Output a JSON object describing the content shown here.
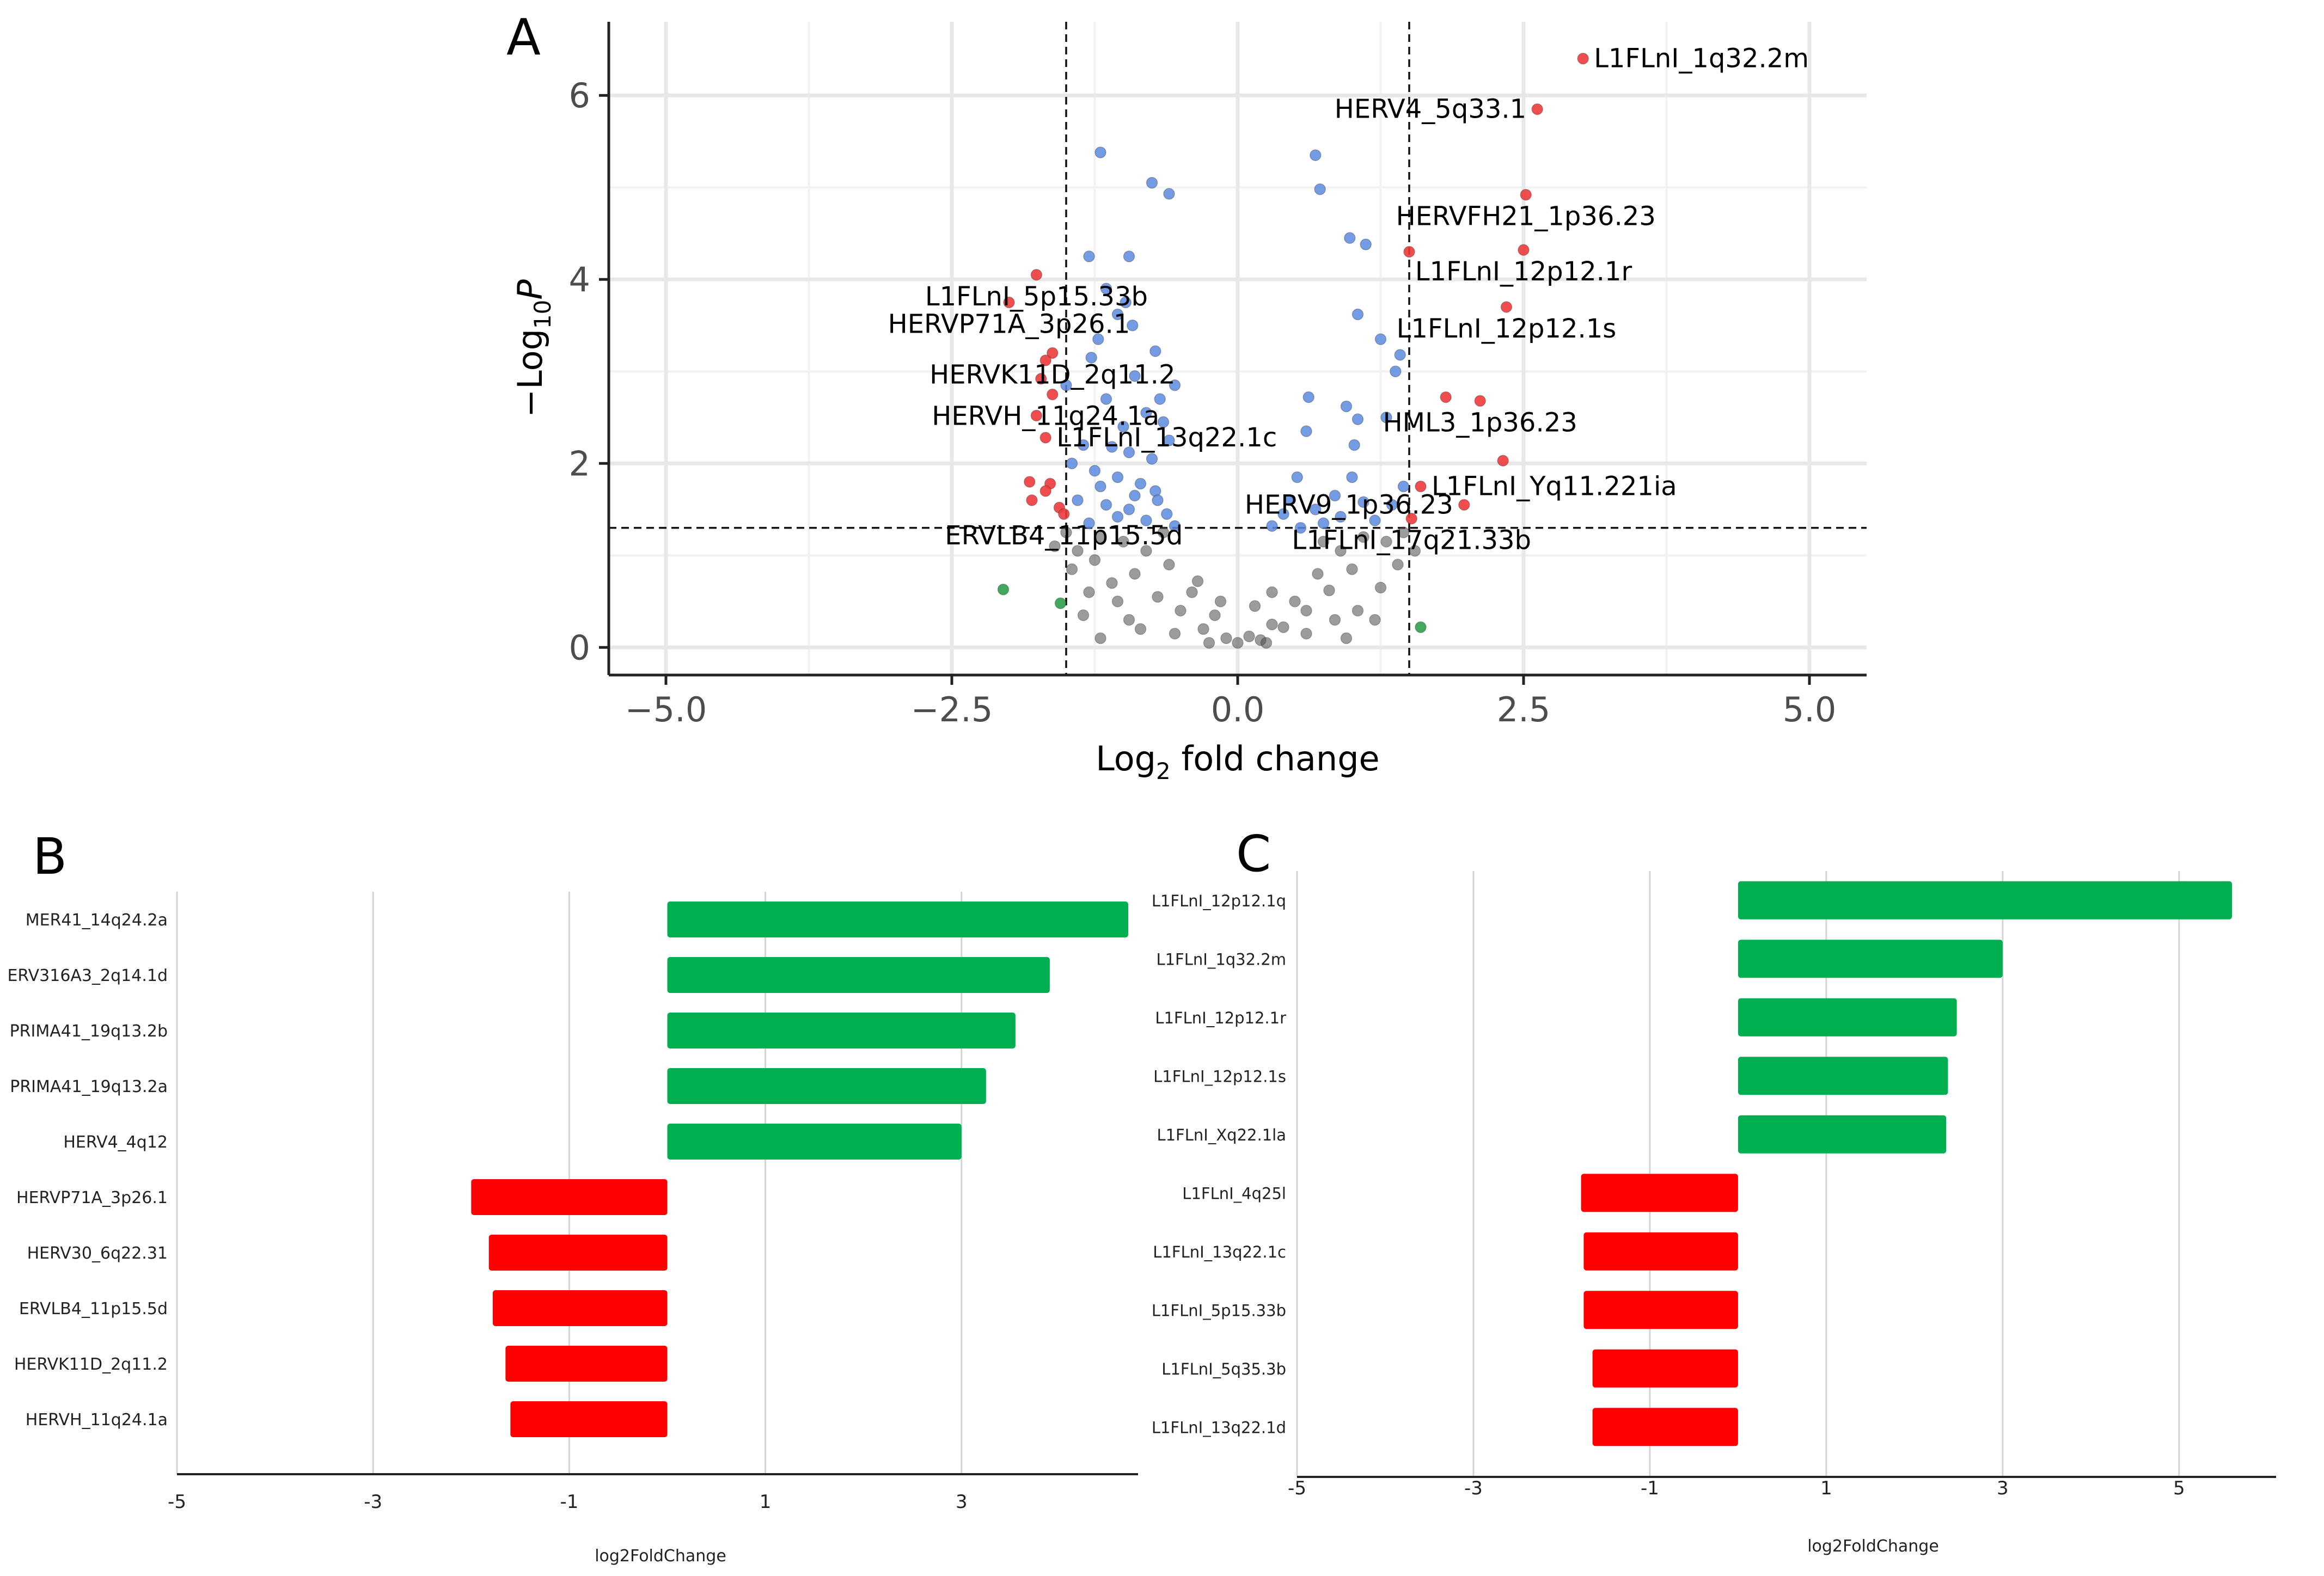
{
  "figure": {
    "panel_labels": [
      "A",
      "B",
      "C"
    ]
  },
  "colors": {
    "ns_point": "#4a4a4a",
    "p_point": "#5b8bdf",
    "fc_p_point": "#ee3b3b",
    "fc_point": "#2e9e4a",
    "up_bar": "#00b050",
    "down_bar": "#ff0000",
    "grid": "#e8e8e8",
    "bar_grid": "#d4d4d4"
  },
  "chart_data": [
    {
      "id": "A",
      "type": "scatter",
      "subtype": "volcano",
      "xlabel_base": "Log",
      "xlabel_sub": "2",
      "xlabel_rest": " fold change",
      "ylabel_prefix": "−Log",
      "ylabel_sub": "10",
      "ylabel_var": "P",
      "xlim": [
        -5.5,
        5.5
      ],
      "ylim": [
        -0.3,
        6.8
      ],
      "xticks": [
        -5,
        -2.5,
        0,
        2.5,
        5
      ],
      "xtick_labels": [
        "−5.0",
        "−2.5",
        "0.0",
        "2.5",
        "5.0"
      ],
      "yticks": [
        0,
        2,
        4,
        6
      ],
      "ytick_labels": [
        "0",
        "2",
        "4",
        "6"
      ],
      "thresholds": {
        "fc": [
          -1.5,
          1.5
        ],
        "p": 1.3
      },
      "red_points": [
        [
          3.02,
          6.4
        ],
        [
          2.62,
          5.85
        ],
        [
          2.52,
          4.92
        ],
        [
          2.5,
          4.32
        ],
        [
          1.5,
          4.3
        ],
        [
          2.35,
          3.7
        ],
        [
          1.82,
          2.72
        ],
        [
          2.12,
          2.68
        ],
        [
          2.32,
          2.03
        ],
        [
          1.6,
          1.75
        ],
        [
          1.98,
          1.55
        ],
        [
          1.52,
          1.4
        ],
        [
          -1.76,
          4.05
        ],
        [
          -2.0,
          3.75
        ],
        [
          -1.62,
          3.2
        ],
        [
          -1.68,
          3.12
        ],
        [
          -1.72,
          2.92
        ],
        [
          -1.62,
          2.75
        ],
        [
          -1.76,
          2.52
        ],
        [
          -1.68,
          2.28
        ],
        [
          -1.82,
          1.8
        ],
        [
          -1.64,
          1.78
        ],
        [
          -1.68,
          1.7
        ],
        [
          -1.8,
          1.6
        ],
        [
          -1.56,
          1.52
        ],
        [
          -1.52,
          1.45
        ]
      ],
      "blue_points": [
        [
          -1.2,
          5.38
        ],
        [
          -0.75,
          5.05
        ],
        [
          -0.6,
          4.93
        ],
        [
          -0.95,
          4.25
        ],
        [
          -1.3,
          4.25
        ],
        [
          -1.15,
          3.9
        ],
        [
          -0.98,
          3.75
        ],
        [
          -1.05,
          3.62
        ],
        [
          -0.92,
          3.5
        ],
        [
          -1.22,
          3.35
        ],
        [
          -1.28,
          3.15
        ],
        [
          -0.72,
          3.22
        ],
        [
          -0.9,
          2.95
        ],
        [
          -1.5,
          2.85
        ],
        [
          -0.55,
          2.85
        ],
        [
          -1.15,
          2.7
        ],
        [
          -0.8,
          2.55
        ],
        [
          -0.65,
          2.45
        ],
        [
          -1.35,
          2.2
        ],
        [
          -1.1,
          2.18
        ],
        [
          -0.95,
          2.12
        ],
        [
          -0.75,
          2.05
        ],
        [
          -0.6,
          2.25
        ],
        [
          -1.25,
          1.92
        ],
        [
          -1.05,
          1.85
        ],
        [
          -0.85,
          1.78
        ],
        [
          -0.72,
          1.7
        ],
        [
          -1.4,
          1.6
        ],
        [
          -1.15,
          1.55
        ],
        [
          -0.95,
          1.5
        ],
        [
          -0.62,
          1.45
        ],
        [
          -0.8,
          1.38
        ],
        [
          -1.3,
          1.35
        ],
        [
          -0.55,
          1.32
        ],
        [
          -1.05,
          1.42
        ],
        [
          -0.9,
          1.65
        ],
        [
          -1.2,
          1.75
        ],
        [
          -0.7,
          1.6
        ],
        [
          -1.45,
          2.0
        ],
        [
          -0.68,
          2.7
        ],
        [
          -1.0,
          2.4
        ],
        [
          0.68,
          5.35
        ],
        [
          0.72,
          4.98
        ],
        [
          0.98,
          4.45
        ],
        [
          1.12,
          4.38
        ],
        [
          1.05,
          3.62
        ],
        [
          1.38,
          3.0
        ],
        [
          1.42,
          3.18
        ],
        [
          1.3,
          2.5
        ],
        [
          1.05,
          2.48
        ],
        [
          0.62,
          2.72
        ],
        [
          1.02,
          2.2
        ],
        [
          0.6,
          2.35
        ],
        [
          0.85,
          1.65
        ],
        [
          0.52,
          1.85
        ],
        [
          0.68,
          1.5
        ],
        [
          0.4,
          1.45
        ],
        [
          0.9,
          1.42
        ],
        [
          1.2,
          1.38
        ],
        [
          0.3,
          1.32
        ],
        [
          1.35,
          1.55
        ],
        [
          1.0,
          1.85
        ],
        [
          0.75,
          1.35
        ],
        [
          1.45,
          1.75
        ],
        [
          0.55,
          1.3
        ],
        [
          1.1,
          1.58
        ],
        [
          0.95,
          2.62
        ],
        [
          1.25,
          3.35
        ],
        [
          0.45,
          1.6
        ]
      ],
      "green_points": [
        [
          -2.05,
          0.63
        ],
        [
          -1.55,
          0.48
        ],
        [
          1.6,
          0.22
        ]
      ],
      "gray_points": [
        [
          -0.2,
          0.35
        ],
        [
          -0.4,
          0.6
        ],
        [
          -0.6,
          0.9
        ],
        [
          -0.8,
          1.05
        ],
        [
          -1.0,
          1.15
        ],
        [
          -1.2,
          1.2
        ],
        [
          -1.4,
          1.05
        ],
        [
          -0.9,
          0.8
        ],
        [
          -0.7,
          0.55
        ],
        [
          -0.5,
          0.4
        ],
        [
          -0.3,
          0.2
        ],
        [
          -0.1,
          0.1
        ],
        [
          0.1,
          0.12
        ],
        [
          0.3,
          0.25
        ],
        [
          0.5,
          0.5
        ],
        [
          0.7,
          0.8
        ],
        [
          0.9,
          1.05
        ],
        [
          1.1,
          1.2
        ],
        [
          1.3,
          1.15
        ],
        [
          1.0,
          0.85
        ],
        [
          0.8,
          0.62
        ],
        [
          0.6,
          0.4
        ],
        [
          0.4,
          0.22
        ],
        [
          0.2,
          0.08
        ],
        [
          -1.3,
          0.6
        ],
        [
          -1.1,
          0.7
        ],
        [
          -1.45,
          0.85
        ],
        [
          1.25,
          0.65
        ],
        [
          1.4,
          0.9
        ],
        [
          1.05,
          0.4
        ],
        [
          -0.95,
          0.3
        ],
        [
          -1.2,
          0.1
        ],
        [
          0.95,
          0.1
        ],
        [
          -0.55,
          0.15
        ],
        [
          0.6,
          0.15
        ],
        [
          -1.5,
          1.25
        ],
        [
          1.45,
          1.25
        ],
        [
          -0.85,
          0.2
        ],
        [
          -1.35,
          0.35
        ],
        [
          1.2,
          0.3
        ],
        [
          0.0,
          0.05
        ],
        [
          -0.25,
          0.05
        ],
        [
          0.25,
          0.05
        ],
        [
          -0.65,
          1.25
        ],
        [
          0.75,
          1.15
        ],
        [
          -1.6,
          1.1
        ],
        [
          1.55,
          1.05
        ],
        [
          -1.25,
          0.95
        ],
        [
          0.3,
          0.6
        ],
        [
          -0.35,
          0.72
        ],
        [
          -0.15,
          0.5
        ],
        [
          0.15,
          0.45
        ],
        [
          -1.05,
          0.5
        ],
        [
          0.85,
          0.3
        ]
      ],
      "labels": [
        {
          "text": "L1FLnI_1q32.2m",
          "x": 3.02,
          "y": 6.4,
          "side": "right"
        },
        {
          "text": "HERV4_5q33.1",
          "x": 2.62,
          "y": 5.85,
          "side": "left"
        },
        {
          "text": "HERVFH21_1p36.23",
          "x": 2.52,
          "y": 4.92,
          "side": "below"
        },
        {
          "text": "L1FLnI_12p12.1r",
          "x": 2.5,
          "y": 4.32,
          "side": "below"
        },
        {
          "text": "L1FLnI_12p12.1s",
          "x": 2.35,
          "y": 3.7,
          "side": "below"
        },
        {
          "text": "HML3_1p36.23",
          "x": 2.12,
          "y": 2.68,
          "side": "below"
        },
        {
          "text": "L1FLnI_Yq11.221ia",
          "x": 1.6,
          "y": 1.75,
          "side": "right"
        },
        {
          "text": "HERV9_1p36.23",
          "x": 1.98,
          "y": 1.55,
          "side": "left"
        },
        {
          "text": "L1FLnI_17q21.33b",
          "x": 1.52,
          "y": 1.4,
          "side": "below"
        },
        {
          "text": "L1FLnI_5p15.33b",
          "x": -1.76,
          "y": 4.05,
          "side": "below"
        },
        {
          "text": "HERVP71A_3p26.1",
          "x": -2.0,
          "y": 3.75,
          "side": "below"
        },
        {
          "text": "HERVK11D_2q11.2",
          "x": -1.62,
          "y": 3.2,
          "side": "below"
        },
        {
          "text": "HERVH_11q24.1a",
          "x": -1.68,
          "y": 2.75,
          "side": "below"
        },
        {
          "text": "L1FLnI_13q22.1c",
          "x": -1.68,
          "y": 2.28,
          "side": "right"
        },
        {
          "text": "ERVLB4_11p15.5d",
          "x": -1.52,
          "y": 1.45,
          "side": "below"
        }
      ]
    },
    {
      "id": "B",
      "type": "bar",
      "orientation": "horizontal",
      "xlabel": "log2FoldChange",
      "xlim": [
        -5,
        4.8
      ],
      "xticks": [
        -5,
        -3,
        -1,
        1,
        3
      ],
      "xtick_labels": [
        "-5",
        "-3",
        "-1",
        "1",
        "3"
      ],
      "categories": [
        "MER41_14q24.2a",
        "ERV316A3_2q14.1d",
        "PRIMA41_19q13.2b",
        "PRIMA41_19q13.2a",
        "HERV4_4q12",
        "HERVP71A_3p26.1",
        "HERV30_6q22.31",
        "ERVLB4_11p15.5d",
        "HERVK11D_2q11.2",
        "HERVH_11q24.1a"
      ],
      "values": [
        4.7,
        3.9,
        3.55,
        3.25,
        3.0,
        -2.0,
        -1.82,
        -1.78,
        -1.65,
        -1.6
      ]
    },
    {
      "id": "C",
      "type": "bar",
      "orientation": "horizontal",
      "xlabel": "log2FoldChange",
      "xlim": [
        -5,
        6.1
      ],
      "xticks": [
        -5,
        -3,
        -1,
        1,
        3,
        5
      ],
      "xtick_labels": [
        "-5",
        "-3",
        "-1",
        "1",
        "3",
        "5"
      ],
      "categories": [
        "L1FLnI_12p12.1q",
        "L1FLnI_1q32.2m",
        "L1FLnI_12p12.1r",
        "L1FLnI_12p12.1s",
        "L1FLnI_Xq22.1la",
        "L1FLnI_4q25l",
        "L1FLnI_13q22.1c",
        "L1FLnI_5p15.33b",
        "L1FLnI_5q35.3b",
        "L1FLnI_13q22.1d"
      ],
      "values": [
        5.6,
        3.0,
        2.48,
        2.38,
        2.36,
        -1.78,
        -1.75,
        -1.75,
        -1.65,
        -1.65
      ]
    }
  ]
}
